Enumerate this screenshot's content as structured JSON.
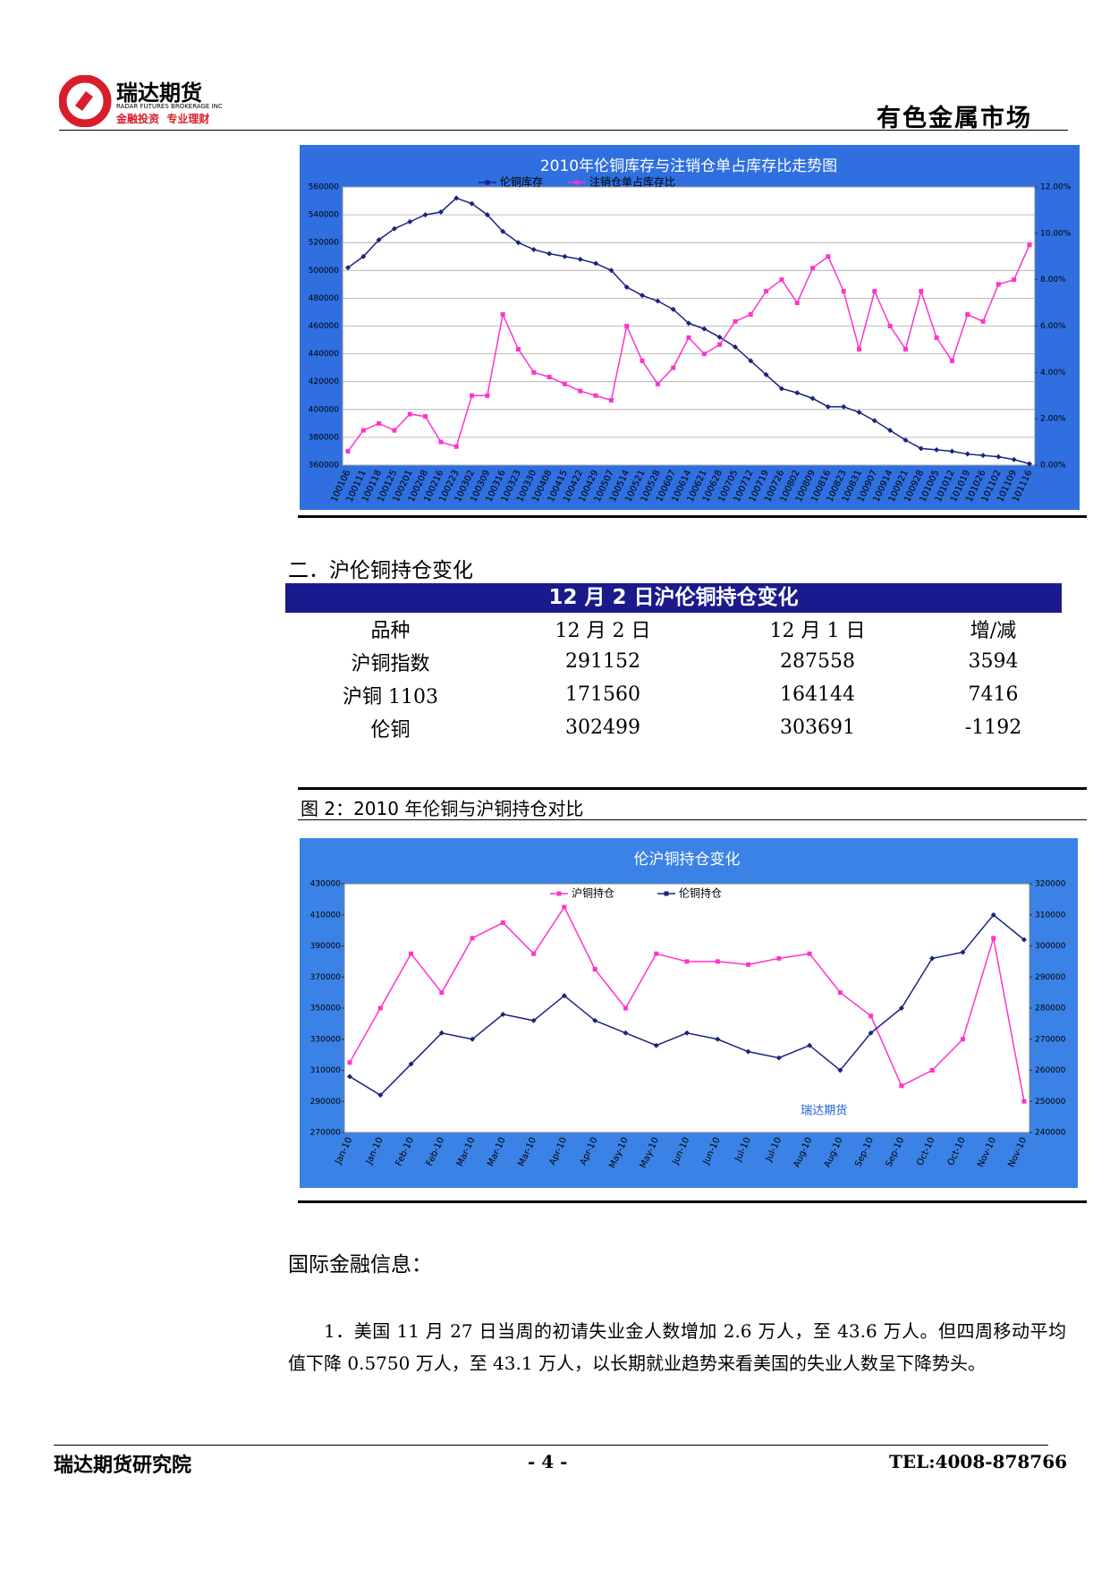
{
  "header": {
    "company": "瑞达期货",
    "company_en": "RADAR FUTURES BROKERAGE INC",
    "slogan": "金融投资  专业理财",
    "section": "有色金属市场"
  },
  "chart_data": [
    {
      "type": "line",
      "title": "2010年伦铜库存与注销仓单占库存比走势图",
      "categories": [
        "100106",
        "100111",
        "100118",
        "100125",
        "100201",
        "100208",
        "100216",
        "100223",
        "100302",
        "100309",
        "100316",
        "100323",
        "100330",
        "100408",
        "100415",
        "100422",
        "100429",
        "100507",
        "100514",
        "100521",
        "100528",
        "100607",
        "100614",
        "100621",
        "100628",
        "100705",
        "100712",
        "100719",
        "100726",
        "100802",
        "100809",
        "100816",
        "100823",
        "100831",
        "100907",
        "100914",
        "100921",
        "100928",
        "101005",
        "101012",
        "101019",
        "101026",
        "101102",
        "101109",
        "101116"
      ],
      "series": [
        {
          "name": "伦铜库存",
          "color": "#1a237e",
          "marker": "diamond",
          "axis": "y",
          "values": [
            502000,
            510000,
            522000,
            530000,
            535000,
            540000,
            542000,
            552000,
            548000,
            540000,
            528000,
            520000,
            515000,
            512000,
            510000,
            508000,
            505000,
            500000,
            488000,
            482000,
            478000,
            472000,
            462000,
            458000,
            452000,
            445000,
            435000,
            425000,
            415000,
            412000,
            408000,
            402000,
            402000,
            398000,
            392000,
            385000,
            378000,
            372000,
            371000,
            370000,
            368000,
            367000,
            366000,
            364000,
            361000
          ]
        },
        {
          "name": "注销仓单占库存比",
          "color": "#ff33cc",
          "marker": "square",
          "axis": "y2",
          "values": [
            0.6,
            1.5,
            1.8,
            1.5,
            2.2,
            2.1,
            1.0,
            0.8,
            3.0,
            3.0,
            6.5,
            5.0,
            4.0,
            3.8,
            3.5,
            3.2,
            3.0,
            2.8,
            6.0,
            4.5,
            3.5,
            4.2,
            5.5,
            4.8,
            5.2,
            6.2,
            6.5,
            7.5,
            8.0,
            7.0,
            8.5,
            9.0,
            7.5,
            5.0,
            7.5,
            6.0,
            5.0,
            7.5,
            5.5,
            4.5,
            6.5,
            6.2,
            7.8,
            8.0,
            9.5
          ]
        }
      ],
      "ylim": [
        360000,
        560000
      ],
      "yticks": [
        360000,
        380000,
        400000,
        420000,
        440000,
        460000,
        480000,
        500000,
        520000,
        540000,
        560000
      ],
      "y2lim": [
        0,
        12
      ],
      "y2ticks": [
        {
          "value": 0,
          "label": "0.00%"
        },
        {
          "value": 2,
          "label": "2.00%"
        },
        {
          "value": 4,
          "label": "4.00%"
        },
        {
          "value": 6,
          "label": "6.00%"
        },
        {
          "value": 8,
          "label": "8.00%"
        },
        {
          "value": 10,
          "label": "10.00%"
        },
        {
          "value": 12,
          "label": "12.00%"
        }
      ],
      "grid": true,
      "legend": "top"
    },
    {
      "type": "line",
      "title": "伦沪铜持仓变化",
      "categories": [
        "Jan-10",
        "Jan-10",
        "Feb-10",
        "Feb-10",
        "Mar-10",
        "Mar-10",
        "Mar-10",
        "Apr-10",
        "Apr-10",
        "May-10",
        "May-10",
        "Jun-10",
        "Jun-10",
        "Jul-10",
        "Jul-10",
        "Aug-10",
        "Aug-10",
        "Sep-10",
        "Sep-10",
        "Oct-10",
        "Oct-10",
        "Nov-10",
        "Nov-10"
      ],
      "series": [
        {
          "name": "沪铜持仓",
          "color": "#ff33cc",
          "marker": "square",
          "axis": "y",
          "values": [
            315000,
            350000,
            385000,
            360000,
            395000,
            405000,
            385000,
            415000,
            375000,
            350000,
            385000,
            380000,
            380000,
            378000,
            382000,
            385000,
            360000,
            345000,
            300000,
            310000,
            330000,
            395000,
            290000
          ]
        },
        {
          "name": "伦铜持仓",
          "color": "#1a237e",
          "marker": "diamond",
          "axis": "y2",
          "values": [
            258000,
            252000,
            262000,
            272000,
            270000,
            278000,
            276000,
            284000,
            276000,
            272000,
            268000,
            272000,
            270000,
            266000,
            264000,
            268000,
            260000,
            272000,
            280000,
            296000,
            298000,
            310000,
            302000
          ]
        }
      ],
      "ylim": [
        270000,
        430000
      ],
      "yticks": [
        270000,
        290000,
        310000,
        330000,
        350000,
        370000,
        390000,
        410000,
        430000
      ],
      "y2lim": [
        240000,
        320000
      ],
      "y2ticks": [
        240000,
        250000,
        260000,
        270000,
        280000,
        290000,
        300000,
        310000,
        320000
      ],
      "grid": false,
      "legend": "top",
      "annotation": "瑞达期货"
    }
  ],
  "section2": {
    "title": "二．沪伦铜持仓变化"
  },
  "table": {
    "title": "12 月 2 日沪伦铜持仓变化",
    "header": [
      "品种",
      "12 月 2 日",
      "12 月 1 日",
      "增/减"
    ],
    "rows": [
      [
        "沪铜指数",
        "291152",
        "287558",
        "3594"
      ],
      [
        "沪铜 1103",
        "171560",
        "164144",
        "7416"
      ],
      [
        "伦铜",
        "302499",
        "303691",
        "-1192"
      ]
    ]
  },
  "figure2": {
    "caption": "图 2：2010 年伦铜与沪铜持仓对比"
  },
  "section3": {
    "title": "国际金融信息：",
    "paragraph": "1．美国 11 月 27 日当周的初请失业金人数增加 2.6 万人，至 43.6 万人。但四周移动平均值下降 0.5750 万人，至 43.1 万人，以长期就业趋势来看美国的失业人数呈下降势头。"
  },
  "footer": {
    "left": "瑞达期货研究院",
    "center": "- 4 -",
    "right": "TEL:4008-878766"
  }
}
